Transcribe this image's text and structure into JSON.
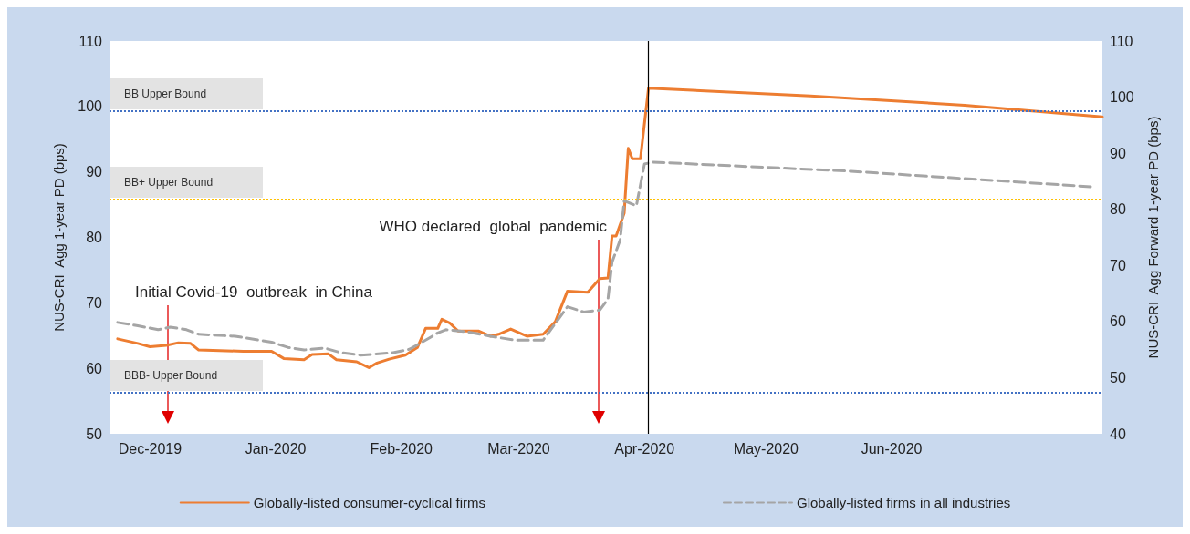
{
  "chart_data": {
    "type": "line",
    "ylabel": "NUS-CRI  Agg 1-year PD (bps)",
    "y2label": "NUS-CRI  Agg Forward 1-year PD (bps)",
    "xlim": [
      "2019-11-21",
      "2020-07-23"
    ],
    "xticks": [
      {
        "value": "2019-12-01",
        "label": "Dec-2019"
      },
      {
        "value": "2020-01-01",
        "label": "Jan-2020"
      },
      {
        "value": "2020-02-01",
        "label": "Feb-2020"
      },
      {
        "value": "2020-03-01",
        "label": "Mar-2020"
      },
      {
        "value": "2020-04-01",
        "label": "Apr-2020"
      },
      {
        "value": "2020-05-01",
        "label": "May-2020"
      },
      {
        "value": "2020-06-01",
        "label": "Jun-2020"
      }
    ],
    "ylim": [
      50,
      110
    ],
    "yticks": [
      50,
      60,
      70,
      80,
      90,
      100,
      110
    ],
    "y2lim": [
      40,
      110
    ],
    "y2ticks": [
      40,
      50,
      60,
      70,
      80,
      90,
      100,
      110
    ],
    "grid": false,
    "legend": "bottom",
    "marker": "none",
    "series": [
      {
        "name": "Globally-listed consumer-cyclical firms",
        "color": "#ed7d31",
        "line_style": "solid",
        "x": [
          "2019-11-23",
          "2019-11-28",
          "2019-12-01",
          "2019-12-05",
          "2019-12-08",
          "2019-12-11",
          "2019-12-13",
          "2019-12-24",
          "2019-12-31",
          "2020-01-03",
          "2020-01-08",
          "2020-01-10",
          "2020-01-14",
          "2020-01-16",
          "2020-01-21",
          "2020-01-24",
          "2020-01-26",
          "2020-01-29",
          "2020-02-02",
          "2020-02-05",
          "2020-02-07",
          "2020-02-10",
          "2020-02-11",
          "2020-02-13",
          "2020-02-15",
          "2020-02-20",
          "2020-02-23",
          "2020-02-25",
          "2020-02-28",
          "2020-03-03",
          "2020-03-07",
          "2020-03-10",
          "2020-03-13",
          "2020-03-18",
          "2020-03-21",
          "2020-03-23",
          "2020-03-24",
          "2020-03-25",
          "2020-03-27",
          "2020-03-28",
          "2020-03-29",
          "2020-03-31",
          "2020-04-02",
          "2020-05-12",
          "2020-06-19",
          "2020-07-23"
        ],
        "values": [
          64.5,
          63.8,
          63.3,
          63.5,
          63.9,
          63.8,
          62.8,
          62.6,
          62.6,
          61.5,
          61.3,
          62.1,
          62.2,
          61.3,
          61.0,
          60.1,
          60.8,
          61.4,
          62.0,
          63.2,
          66.1,
          66.1,
          67.5,
          66.9,
          65.7,
          65.7,
          64.9,
          65.2,
          66.0,
          64.9,
          65.2,
          67.1,
          71.8,
          71.6,
          73.7,
          73.8,
          80.2,
          80.2,
          83.7,
          93.6,
          92.0,
          92.0,
          102.8,
          101.6,
          100.2,
          98.4
        ]
      },
      {
        "name": "Globally-listed firms in all industries",
        "color": "#a5a5a5",
        "line_style": "dashed",
        "x": [
          "2019-11-23",
          "2019-11-28",
          "2019-12-03",
          "2019-12-06",
          "2019-12-10",
          "2019-12-13",
          "2019-12-22",
          "2019-12-31",
          "2020-01-04",
          "2020-01-08",
          "2020-01-13",
          "2020-01-17",
          "2020-01-22",
          "2020-01-30",
          "2020-02-03",
          "2020-02-07",
          "2020-02-10",
          "2020-02-12",
          "2020-02-17",
          "2020-02-23",
          "2020-02-29",
          "2020-03-07",
          "2020-03-13",
          "2020-03-17",
          "2020-03-21",
          "2020-03-23",
          "2020-03-24",
          "2020-03-26",
          "2020-03-27",
          "2020-03-30",
          "2020-04-01",
          "2020-04-03",
          "2020-05-22",
          "2020-07-21"
        ],
        "values": [
          67.0,
          66.5,
          65.9,
          66.3,
          65.9,
          65.2,
          64.9,
          64.0,
          63.2,
          62.8,
          63.1,
          62.4,
          62.0,
          62.4,
          62.9,
          64.3,
          65.4,
          65.9,
          65.6,
          64.9,
          64.3,
          64.3,
          69.4,
          68.6,
          68.9,
          70.6,
          76.2,
          79.6,
          85.6,
          84.8,
          91.2,
          91.5,
          90.1,
          87.7
        ]
      }
    ],
    "ref_lines": [
      {
        "axis": "y",
        "value": 99.3,
        "label": "BB Upper Bound",
        "color": "#4472c4",
        "line_style": "dotted"
      },
      {
        "axis": "y",
        "value": 85.8,
        "label": "BB+ Upper Bound",
        "color": "#ffc000",
        "line_style": "dotted"
      },
      {
        "axis": "y",
        "value": 56.3,
        "label": "BBB- Upper Bound",
        "color": "#4472c4",
        "line_style": "dotted"
      },
      {
        "axis": "x",
        "value": "2020-04-02",
        "color": "#000000",
        "line_style": "solid"
      }
    ],
    "annotations": [
      "Initial Covid-19  outbreak  in China",
      "WHO declared  global  pandemic"
    ]
  }
}
